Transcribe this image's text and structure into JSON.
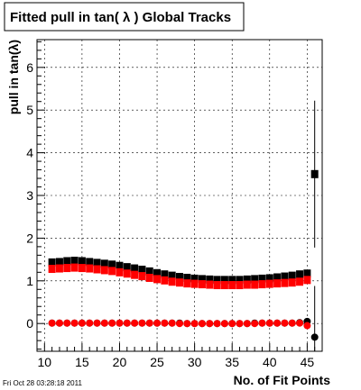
{
  "chart_data": {
    "type": "scatter",
    "title": "Fitted pull in tan( λ )  Global Tracks",
    "xlabel": "No. of Fit Points",
    "ylabel": "pull in tan(λ)",
    "xlim": [
      9,
      47
    ],
    "ylim": [
      -0.65,
      6.65
    ],
    "x_ticks": [
      10,
      15,
      20,
      25,
      30,
      35,
      40,
      45
    ],
    "y_ticks": [
      0,
      1,
      2,
      3,
      4,
      5,
      6
    ],
    "grid": true,
    "series": [
      {
        "color": "#000000",
        "marker": "square",
        "x": [
          11,
          12,
          13,
          14,
          15,
          16,
          17,
          18,
          19,
          20,
          21,
          22,
          23,
          24,
          25,
          26,
          27,
          28,
          29,
          30,
          31,
          32,
          33,
          34,
          35,
          36,
          37,
          38,
          39,
          40,
          41,
          42,
          43,
          44,
          45,
          46
        ],
        "y": [
          1.43,
          1.44,
          1.46,
          1.47,
          1.46,
          1.44,
          1.42,
          1.4,
          1.38,
          1.35,
          1.32,
          1.29,
          1.26,
          1.22,
          1.18,
          1.15,
          1.12,
          1.09,
          1.07,
          1.05,
          1.04,
          1.03,
          1.02,
          1.02,
          1.02,
          1.02,
          1.03,
          1.04,
          1.05,
          1.06,
          1.08,
          1.1,
          1.12,
          1.15,
          1.17,
          3.5
        ],
        "yerr": [
          0.02,
          0.02,
          0.02,
          0.02,
          0.02,
          0.02,
          0.02,
          0.02,
          0.02,
          0.02,
          0.02,
          0.02,
          0.02,
          0.02,
          0.02,
          0.02,
          0.02,
          0.02,
          0.02,
          0.02,
          0.02,
          0.02,
          0.02,
          0.02,
          0.02,
          0.02,
          0.02,
          0.02,
          0.02,
          0.02,
          0.02,
          0.02,
          0.02,
          0.02,
          0.03,
          1.72
        ]
      },
      {
        "color": "#ff0000",
        "marker": "square",
        "x": [
          11,
          12,
          13,
          14,
          15,
          16,
          17,
          18,
          19,
          20,
          21,
          22,
          23,
          24,
          25,
          26,
          27,
          28,
          29,
          30,
          31,
          32,
          33,
          34,
          35,
          36,
          37,
          38,
          39,
          40,
          41,
          42,
          43,
          44,
          45
        ],
        "y": [
          1.28,
          1.29,
          1.3,
          1.31,
          1.3,
          1.29,
          1.27,
          1.25,
          1.23,
          1.2,
          1.17,
          1.14,
          1.11,
          1.07,
          1.04,
          1.01,
          0.98,
          0.96,
          0.94,
          0.93,
          0.92,
          0.91,
          0.9,
          0.9,
          0.9,
          0.9,
          0.91,
          0.91,
          0.92,
          0.93,
          0.94,
          0.95,
          0.96,
          0.98,
          1.02
        ],
        "yerr": [
          0.02,
          0.02,
          0.02,
          0.02,
          0.02,
          0.02,
          0.02,
          0.02,
          0.02,
          0.02,
          0.02,
          0.02,
          0.02,
          0.02,
          0.02,
          0.02,
          0.02,
          0.02,
          0.02,
          0.02,
          0.02,
          0.02,
          0.02,
          0.02,
          0.02,
          0.02,
          0.02,
          0.02,
          0.02,
          0.02,
          0.02,
          0.02,
          0.02,
          0.02,
          0.03
        ]
      },
      {
        "color": "#000000",
        "marker": "circle",
        "x": [
          11,
          12,
          13,
          14,
          15,
          16,
          17,
          18,
          19,
          20,
          21,
          22,
          23,
          24,
          25,
          26,
          27,
          28,
          29,
          30,
          31,
          32,
          33,
          34,
          35,
          36,
          37,
          38,
          39,
          40,
          41,
          42,
          43,
          44,
          45,
          46
        ],
        "y": [
          0.01,
          0.01,
          0.01,
          0.01,
          0.01,
          0.01,
          0.01,
          0.01,
          0.01,
          0.01,
          0.01,
          0.01,
          0.01,
          0.01,
          0.01,
          0.01,
          0.01,
          0.01,
          0.0,
          0.0,
          0.0,
          0.0,
          0.0,
          0.0,
          0.0,
          0.0,
          0.0,
          0.01,
          0.01,
          0.01,
          0.01,
          0.01,
          0.01,
          0.02,
          0.05,
          -0.32
        ],
        "yerr": [
          0.02,
          0.02,
          0.02,
          0.02,
          0.02,
          0.02,
          0.02,
          0.02,
          0.02,
          0.02,
          0.02,
          0.02,
          0.02,
          0.02,
          0.02,
          0.02,
          0.02,
          0.02,
          0.02,
          0.02,
          0.02,
          0.02,
          0.02,
          0.02,
          0.02,
          0.02,
          0.02,
          0.02,
          0.02,
          0.02,
          0.02,
          0.02,
          0.02,
          0.02,
          0.05,
          1.2
        ]
      },
      {
        "color": "#ff0000",
        "marker": "circle",
        "x": [
          11,
          12,
          13,
          14,
          15,
          16,
          17,
          18,
          19,
          20,
          21,
          22,
          23,
          24,
          25,
          26,
          27,
          28,
          29,
          30,
          31,
          32,
          33,
          34,
          35,
          36,
          37,
          38,
          39,
          40,
          41,
          42,
          43,
          44,
          45
        ],
        "y": [
          0.01,
          0.01,
          0.01,
          0.01,
          0.01,
          0.01,
          0.01,
          0.01,
          0.01,
          0.01,
          0.01,
          0.01,
          0.01,
          0.01,
          0.01,
          0.01,
          0.01,
          0.0,
          0.0,
          0.0,
          0.0,
          0.0,
          0.0,
          0.0,
          0.0,
          0.0,
          0.0,
          0.0,
          0.01,
          0.01,
          0.01,
          0.01,
          0.01,
          0.01,
          -0.05
        ],
        "yerr": [
          0.02,
          0.02,
          0.02,
          0.02,
          0.02,
          0.02,
          0.02,
          0.02,
          0.02,
          0.02,
          0.02,
          0.02,
          0.02,
          0.02,
          0.02,
          0.02,
          0.02,
          0.02,
          0.02,
          0.02,
          0.02,
          0.02,
          0.02,
          0.02,
          0.02,
          0.02,
          0.02,
          0.02,
          0.02,
          0.02,
          0.02,
          0.02,
          0.02,
          0.02,
          0.04
        ]
      }
    ]
  },
  "footer": {
    "timestamp": "Fri Oct 28 03:28:18 2011"
  }
}
